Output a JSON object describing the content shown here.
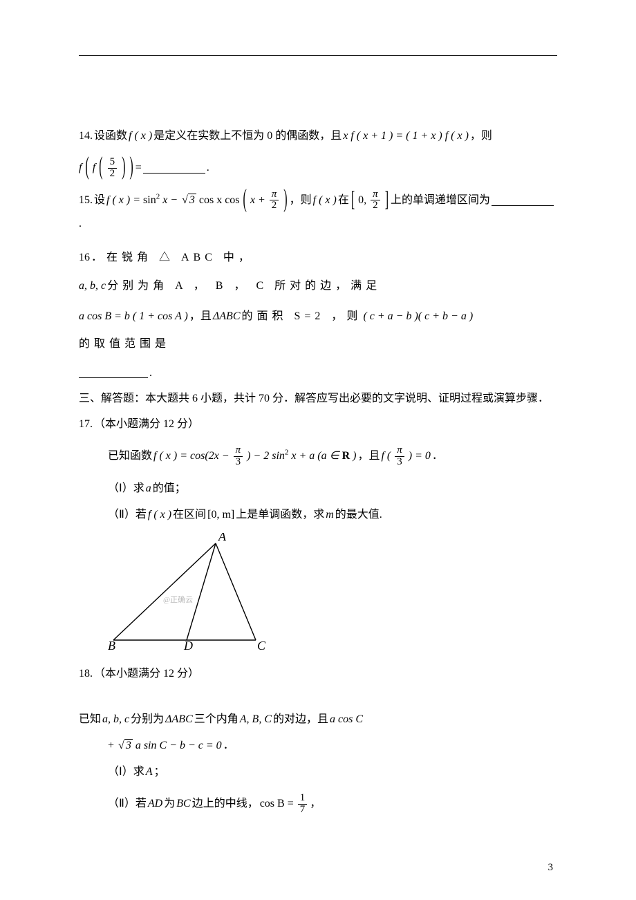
{
  "hr_color": "#000000",
  "q14": {
    "num": "14.",
    "pre": " 设函数 ",
    "mid1": "是定义在实数上不恒为 0 的偶函数，且 ",
    "tail": "，则",
    "line2_tail": "= ",
    "fx": "f ( x )",
    "eq": "x f ( x + 1 ) = ( 1 + x ) f ( x )",
    "nest_f": "f",
    "inner_f": "f",
    "frac_num": "5",
    "frac_den": "2",
    "period": "."
  },
  "q15": {
    "num": "15.",
    "pre": " 设 ",
    "f_def_lead": "f ( x ) = ",
    "sin2": "sin",
    "x": " x − ",
    "cos_lead": " cos x cos",
    "plus": "x + ",
    "pi": "π",
    "two": "2",
    "mid": "，则 ",
    "fx": "f ( x )",
    "in": " 在 ",
    "zero": "0,",
    "tail": " 上的单调递增区间为 ",
    "sqrt3": "3",
    "period": "."
  },
  "q16": {
    "num": "16",
    "line1": "．在锐角 △ ABC 中，",
    "abc": "a, b, c",
    "line1b": " 分别为角 A ， B ， C 所对的边，满足",
    "eq": "a cos B = b ( 1 + cos A )",
    "mid1": "，且",
    "dabc": "ΔABC",
    "mid2": " 的面积 S=2 ，则 ",
    "prod": "( c + a − b )( c + b − a )",
    "tail": " 的取值范围是",
    "period": "."
  },
  "section3": "三、解答题：本大题共 6 小题，共计 70 分．解答应写出必要的文字说明、证明过程或演算步骤．",
  "q17": {
    "num": "17.",
    "head": "（本小题满分 12 分）",
    "l1a": "已知函数 ",
    "f_def": "f ( x ) = cos(2x − ",
    "pi": "π",
    "three": "3",
    "f_def2": ") − 2 sin",
    "f_def3": " x + a (a ∈ ",
    "R": "R",
    "f_def4": ")",
    "mid": "，且 ",
    "fpi3": "f (",
    "eq0": ") = 0",
    "period": "．",
    "p1": "（Ⅰ）求 ",
    "a": "a",
    "p1b": " 的值；",
    "p2": "（Ⅱ）若 ",
    "fx": "f ( x )",
    "p2b": " 在区间 ",
    "intv": "[0, m]",
    "p2c": " 上是单调函数，求 ",
    "m": "m",
    "p2d": " 的最大值."
  },
  "figure": {
    "A": "A",
    "B": "B",
    "C": "C",
    "D": "D",
    "watermark": "@正确云",
    "stroke": "#000000",
    "stroke_width": 1.4,
    "label_font": 18
  },
  "q18": {
    "num": "18.",
    "head": "（本小题满分 12 分）",
    "l1a": "已知",
    "abc": " a, b, c ",
    "l1b": "分别为 ",
    "dabc": "ΔABC",
    "l1c": " 三个内角 ",
    "ABC": "A, B, C",
    "l1d": " 的对边，且 ",
    "eq1": "a cos C",
    "eq2a": "+ ",
    "sqrt3": "3",
    "eq2b": "a sin C − b − c = 0",
    "period": "．",
    "p1": "（Ⅰ）求 ",
    "A": "A",
    "p1b": "；",
    "p2": "（Ⅱ）若 ",
    "AD": "AD",
    "p2b": " 为 ",
    "BC": "BC",
    "p2c": " 边上的中线，",
    "cosB": "cos B = ",
    "one": "1",
    "seven": "7",
    "comma": "，"
  },
  "watermark_side": "",
  "page_number": "3"
}
